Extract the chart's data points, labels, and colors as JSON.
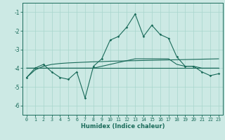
{
  "xlabel": "Humidex (Indice chaleur)",
  "x_ticks": [
    0,
    1,
    2,
    3,
    4,
    5,
    6,
    7,
    8,
    9,
    10,
    11,
    12,
    13,
    14,
    15,
    16,
    17,
    18,
    19,
    20,
    21,
    22,
    23
  ],
  "ylim": [
    -6.5,
    -0.5
  ],
  "xlim": [
    -0.5,
    23.5
  ],
  "yticks": [
    -6,
    -5,
    -4,
    -3,
    -2,
    -1
  ],
  "background_color": "#cce9e4",
  "grid_color": "#a8d5cc",
  "line_color": "#1a6b5a",
  "series1_x": [
    0,
    1,
    2,
    3,
    4,
    5,
    6,
    7,
    8,
    9,
    10,
    11,
    12,
    13,
    14,
    15,
    16,
    17,
    18,
    19,
    20,
    21,
    22,
    23
  ],
  "series1_y": [
    -4.5,
    -4.0,
    -3.8,
    -4.2,
    -4.5,
    -4.6,
    -4.2,
    -5.6,
    -3.9,
    -3.5,
    -2.5,
    -2.3,
    -1.8,
    -1.1,
    -2.3,
    -1.7,
    -2.2,
    -2.4,
    -3.4,
    -3.9,
    -3.9,
    -4.2,
    -4.4,
    -4.3
  ],
  "series2_x": [
    0,
    1,
    2,
    3,
    4,
    5,
    6,
    7,
    8,
    9,
    10,
    11,
    12,
    13,
    14,
    15,
    16,
    17,
    18,
    19,
    20,
    21,
    22,
    23
  ],
  "series2_y": [
    -4.0,
    -4.0,
    -4.0,
    -4.0,
    -4.0,
    -4.0,
    -4.0,
    -4.0,
    -4.0,
    -3.9,
    -3.8,
    -3.7,
    -3.6,
    -3.5,
    -3.5,
    -3.5,
    -3.5,
    -3.5,
    -3.8,
    -3.9,
    -3.9,
    -4.0,
    -4.0,
    -4.0
  ],
  "series3_x": [
    0,
    1,
    2,
    3,
    4,
    5,
    6,
    7,
    8,
    9,
    10,
    11,
    12,
    13,
    14,
    15,
    16,
    17,
    18,
    19,
    20,
    21,
    22,
    23
  ],
  "series3_y": [
    -4.5,
    -4.1,
    -3.9,
    -3.8,
    -3.75,
    -3.72,
    -3.7,
    -3.68,
    -3.66,
    -3.65,
    -3.63,
    -3.62,
    -3.61,
    -3.6,
    -3.59,
    -3.58,
    -3.57,
    -3.56,
    -3.55,
    -3.54,
    -3.53,
    -3.52,
    -3.51,
    -3.5
  ],
  "series4_x": [
    0,
    23
  ],
  "series4_y": [
    -4.0,
    -4.0
  ]
}
